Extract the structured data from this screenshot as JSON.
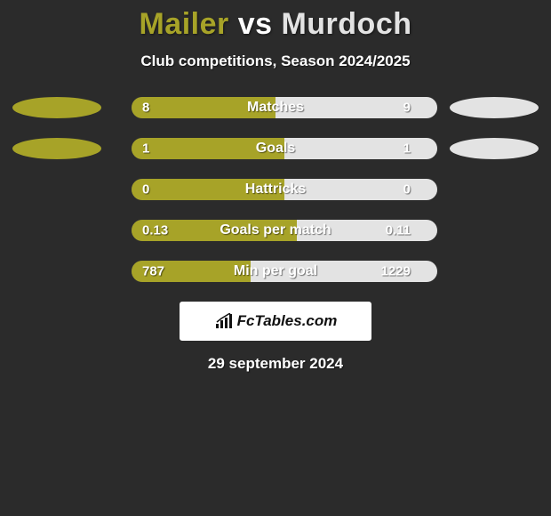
{
  "title": {
    "left": "Mailer",
    "vs": "vs",
    "right": "Murdoch"
  },
  "title_color_left": "#a7a328",
  "title_color_right": "#e3e3e3",
  "subtitle": "Club competitions, Season 2024/2025",
  "colors": {
    "left": "#a7a328",
    "right": "#e3e3e3",
    "background": "#2b2b2b",
    "track_bg": "#5a5a5a",
    "attribution_bg": "#ffffff",
    "attribution_text": "#111111"
  },
  "fonts": {
    "title_size": 34,
    "subtitle_size": 17,
    "bar_label_size": 16,
    "bar_value_size": 15
  },
  "bar": {
    "track_width": 344,
    "height": 24,
    "radius": 12
  },
  "rows": [
    {
      "label": "Matches",
      "left_val": "8",
      "right_val": "9",
      "left_pct": 47.0,
      "show_ellipses": true
    },
    {
      "label": "Goals",
      "left_val": "1",
      "right_val": "1",
      "left_pct": 50.0,
      "show_ellipses": true
    },
    {
      "label": "Hattricks",
      "left_val": "0",
      "right_val": "0",
      "left_pct": 50.0,
      "show_ellipses": false
    },
    {
      "label": "Goals per match",
      "left_val": "0.13",
      "right_val": "0.11",
      "left_pct": 54.0,
      "show_ellipses": false
    },
    {
      "label": "Min per goal",
      "left_val": "787",
      "right_val": "1229",
      "left_pct": 39.0,
      "show_ellipses": false
    }
  ],
  "attribution": "FcTables.com",
  "date": "29 september 2024"
}
